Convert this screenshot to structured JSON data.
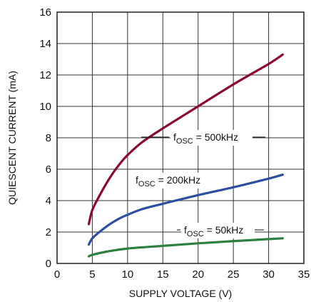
{
  "chart_data": {
    "type": "line",
    "title": "",
    "xlabel": "SUPPLY VOLTAGE (V)",
    "ylabel": "QUIESCENT CURRENT (mA)",
    "xlim": [
      0,
      35
    ],
    "ylim": [
      0,
      16
    ],
    "xticks": [
      0,
      5,
      10,
      15,
      20,
      25,
      30,
      35
    ],
    "yticks": [
      0,
      2,
      4,
      6,
      8,
      10,
      12,
      14,
      16
    ],
    "grid": true,
    "series": [
      {
        "name": "fOSC = 500kHz",
        "label_main": "f",
        "label_sub": "OSC",
        "label_rest": " = 500kHz",
        "color": "#8b0a32",
        "x": [
          4.5,
          5,
          6,
          7,
          8,
          9,
          10,
          12,
          15,
          20,
          25,
          30,
          32
        ],
        "y": [
          2.5,
          3.4,
          4.3,
          5.1,
          5.8,
          6.4,
          6.9,
          7.7,
          8.6,
          10.0,
          11.4,
          12.7,
          13.3
        ]
      },
      {
        "name": "fOSC = 200kHz",
        "label_main": "f",
        "label_sub": "OSC",
        "label_rest": " = 200kHz",
        "color": "#2e4fa0",
        "x": [
          4.5,
          5,
          6,
          7,
          8,
          9,
          10,
          12,
          15,
          20,
          25,
          30,
          32
        ],
        "y": [
          1.2,
          1.6,
          2.0,
          2.35,
          2.65,
          2.9,
          3.1,
          3.45,
          3.8,
          4.35,
          4.85,
          5.4,
          5.65
        ]
      },
      {
        "name": "fOSC = 50kHz",
        "label_main": "f",
        "label_sub": "OSC",
        "label_rest": " = 50kHz",
        "color": "#2e8040",
        "x": [
          4.5,
          5,
          7,
          10,
          15,
          20,
          25,
          30,
          32
        ],
        "y": [
          0.45,
          0.55,
          0.75,
          0.95,
          1.12,
          1.28,
          1.42,
          1.55,
          1.6
        ]
      }
    ]
  }
}
